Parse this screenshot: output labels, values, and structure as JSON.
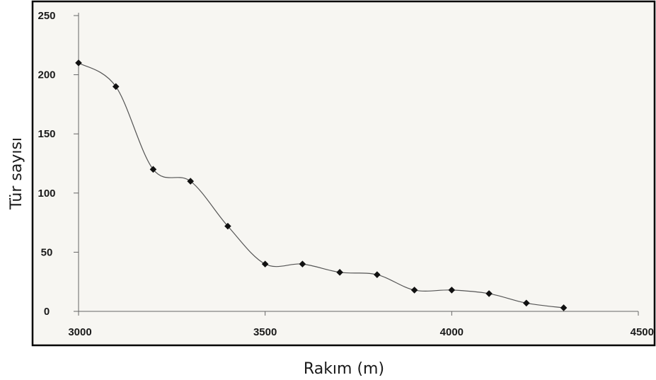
{
  "chart_data": {
    "type": "line",
    "xlabel": "Rakım (m)",
    "ylabel": "Tür sayısı",
    "xlim": [
      3000,
      4500
    ],
    "ylim": [
      0,
      250
    ],
    "x_ticks": [
      "3000",
      "3500",
      "4000",
      "4500"
    ],
    "y_ticks": [
      "0",
      "50",
      "100",
      "150",
      "200",
      "250"
    ],
    "grid": false,
    "series": [
      {
        "x": [
          3000,
          3100,
          3200,
          3300,
          3400,
          3500,
          3600,
          3700,
          3800,
          3900,
          4000,
          4100,
          4200,
          4300
        ],
        "y": [
          210,
          190,
          120,
          110,
          72,
          40,
          40,
          33,
          31,
          18,
          18,
          15,
          7,
          3
        ]
      }
    ],
    "colors": {
      "line": "#555555",
      "marker": "#111111",
      "frame": "#000000",
      "plot_bg": "#f7f6f2"
    }
  }
}
